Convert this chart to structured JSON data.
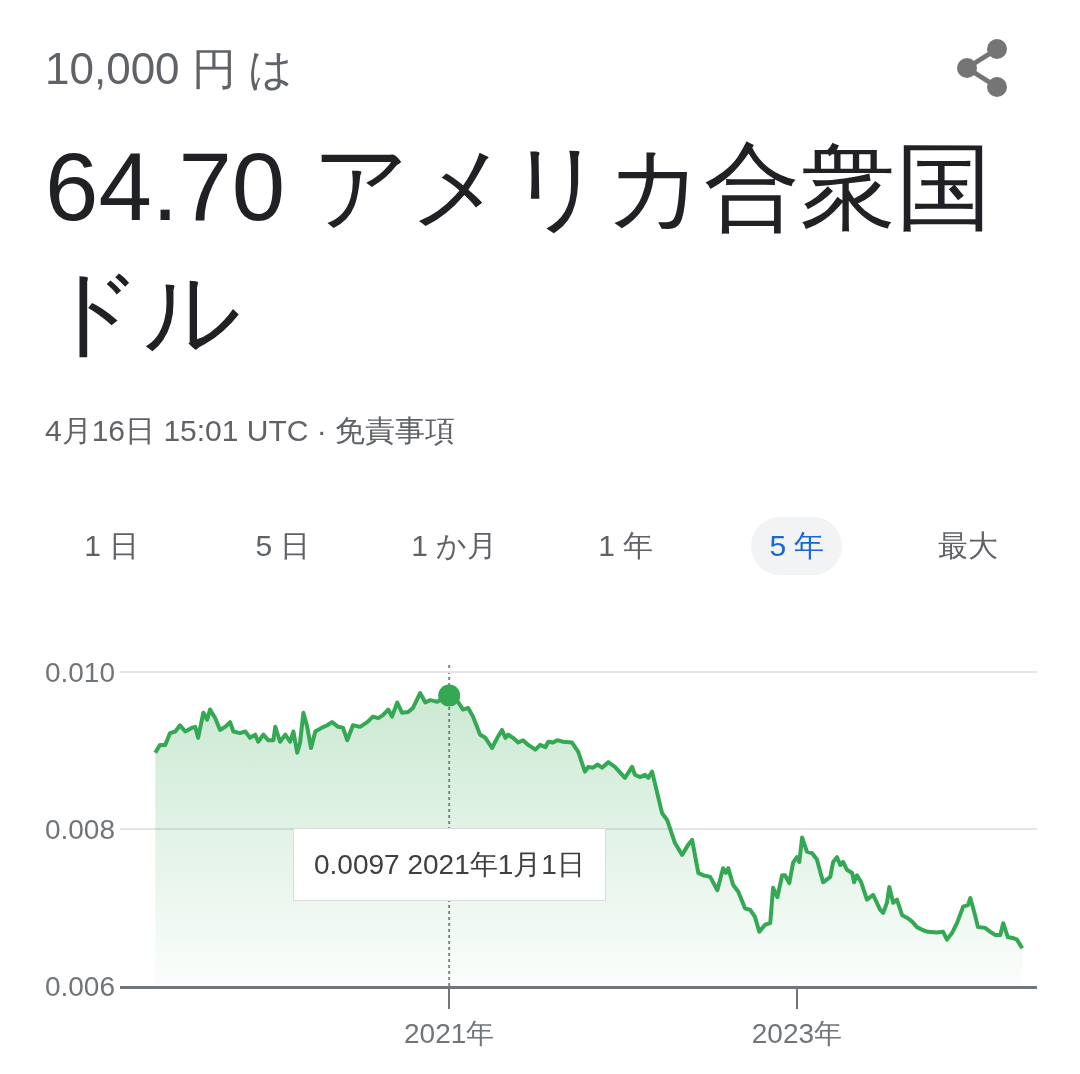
{
  "chart_data": {
    "type": "area",
    "subtitle": "10,000 円 は",
    "title": "64.70 アメリカ合衆国ドル",
    "annotations": [
      "4月16日 15:01 UTC · 免責事項",
      "1 日",
      "5 日",
      "1 か月",
      "1 年",
      "5 年",
      "最大"
    ],
    "series": [
      {
        "color": "#34a853",
        "x": [
          "2019-04-25",
          "2019-05-05",
          "2019-05-16",
          "2019-05-26",
          "2019-06-06",
          "2019-06-16",
          "2019-06-27",
          "2019-07-12",
          "2019-07-18",
          "2019-07-24",
          "2019-08-04",
          "2019-08-12",
          "2019-08-18",
          "2019-08-29",
          "2019-09-08",
          "2019-09-19",
          "2019-09-29",
          "2019-10-06",
          "2019-10-20",
          "2019-10-31",
          "2019-11-10",
          "2019-11-21",
          "2019-11-27",
          "2019-12-08",
          "2019-12-18",
          "2019-12-29",
          "2020-01-02",
          "2020-01-12",
          "2020-01-23",
          "2020-02-02",
          "2020-02-09",
          "2020-02-17",
          "2020-02-23",
          "2020-03-01",
          "2020-03-09",
          "2020-03-17",
          "2020-03-26",
          "2020-04-09",
          "2020-04-20",
          "2020-04-30",
          "2020-05-13",
          "2020-05-23",
          "2020-06-01",
          "2020-06-13",
          "2020-06-28",
          "2020-07-13",
          "2020-07-25",
          "2020-08-05",
          "2020-08-15",
          "2020-08-26",
          "2020-09-03",
          "2020-09-14",
          "2020-09-24",
          "2020-10-07",
          "2020-10-17",
          "2020-11-01",
          "2020-11-12",
          "2020-11-22",
          "2020-12-07",
          "2021-01-01",
          "2021-01-14",
          "2021-01-30",
          "2021-02-10",
          "2021-02-20",
          "2021-03-07",
          "2021-03-18",
          "2021-04-01",
          "2021-04-12",
          "2021-04-22",
          "2021-04-29",
          "2021-05-05",
          "2021-05-15",
          "2021-05-26",
          "2021-06-05",
          "2021-06-16",
          "2021-07-01",
          "2021-07-11",
          "2021-07-22",
          "2021-07-28",
          "2021-08-07",
          "2021-08-16",
          "2021-08-28",
          "2021-09-16",
          "2021-09-29",
          "2021-10-13",
          "2021-10-20",
          "2021-10-30",
          "2021-11-08",
          "2021-11-18",
          "2021-12-01",
          "2021-12-15",
          "2022-01-05",
          "2022-01-20",
          "2022-01-26",
          "2022-02-06",
          "2022-02-16",
          "2022-02-23",
          "2022-03-03",
          "2022-03-24",
          "2022-04-04",
          "2022-04-20",
          "2022-05-05",
          "2022-05-18",
          "2022-05-26",
          "2022-06-08",
          "2022-06-18",
          "2022-07-03",
          "2022-07-18",
          "2022-07-30",
          "2022-08-05",
          "2022-08-10",
          "2022-08-20",
          "2022-08-31",
          "2022-09-14",
          "2022-09-25",
          "2022-10-05",
          "2022-10-14",
          "2022-10-26",
          "2022-11-06",
          "2022-11-12",
          "2022-11-21",
          "2022-12-01",
          "2022-12-07",
          "2022-12-16",
          "2022-12-24",
          "2023-01-01",
          "2023-01-06",
          "2023-01-12",
          "2023-01-22",
          "2023-02-02",
          "2023-02-12",
          "2023-02-25",
          "2023-03-12",
          "2023-03-18",
          "2023-03-26",
          "2023-04-02",
          "2023-04-08",
          "2023-04-16",
          "2023-04-27",
          "2023-05-01",
          "2023-05-07",
          "2023-05-16",
          "2023-05-28",
          "2023-06-10",
          "2023-06-25",
          "2023-07-01",
          "2023-07-09",
          "2023-07-14",
          "2023-07-22",
          "2023-07-30",
          "2023-08-10",
          "2023-08-20",
          "2023-08-31",
          "2023-09-10",
          "2023-09-23",
          "2023-10-03",
          "2023-10-22",
          "2023-11-04",
          "2023-11-12",
          "2023-11-23",
          "2023-12-03",
          "2023-12-16",
          "2023-12-26",
          "2023-12-31",
          "2024-01-10",
          "2024-01-16",
          "2024-01-31",
          "2024-02-11",
          "2024-02-21",
          "2024-03-03",
          "2024-03-09",
          "2024-03-19",
          "2024-03-30",
          "2024-04-07",
          "2024-04-18"
        ],
        "values": [
          0.00897,
          0.00907,
          0.00907,
          0.00922,
          0.00924,
          0.00932,
          0.00924,
          0.00929,
          0.0093,
          0.00916,
          0.00948,
          0.00939,
          0.00952,
          0.00941,
          0.00926,
          0.0093,
          0.00936,
          0.00924,
          0.00922,
          0.00924,
          0.00916,
          0.0092,
          0.00911,
          0.0092,
          0.00913,
          0.00913,
          0.0093,
          0.00911,
          0.0092,
          0.00911,
          0.00924,
          0.00897,
          0.0091,
          0.00948,
          0.0093,
          0.00903,
          0.00924,
          0.00929,
          0.00932,
          0.00936,
          0.0093,
          0.00929,
          0.00913,
          0.00932,
          0.0093,
          0.00936,
          0.00943,
          0.00941,
          0.00945,
          0.00952,
          0.00943,
          0.00961,
          0.00948,
          0.00949,
          0.00954,
          0.00973,
          0.00961,
          0.00964,
          0.00962,
          0.0097,
          0.00967,
          0.00952,
          0.00954,
          0.00943,
          0.0092,
          0.00916,
          0.00903,
          0.00916,
          0.00926,
          0.00916,
          0.0092,
          0.00916,
          0.0091,
          0.00913,
          0.00907,
          0.00901,
          0.00907,
          0.00904,
          0.00911,
          0.0091,
          0.00913,
          0.00911,
          0.0091,
          0.00898,
          0.00873,
          0.00879,
          0.00878,
          0.00882,
          0.00878,
          0.00885,
          0.00879,
          0.00865,
          0.00879,
          0.00869,
          0.00866,
          0.00869,
          0.00865,
          0.00873,
          0.0082,
          0.00811,
          0.00782,
          0.00767,
          0.0078,
          0.00786,
          0.00744,
          0.00741,
          0.00739,
          0.00722,
          0.0075,
          0.00744,
          0.0075,
          0.00729,
          0.0072,
          0.00699,
          0.00697,
          0.00688,
          0.00669,
          0.00678,
          0.0068,
          0.00725,
          0.00713,
          0.00741,
          0.00741,
          0.00731,
          0.00757,
          0.00764,
          0.00758,
          0.00789,
          0.00771,
          0.00769,
          0.00761,
          0.00732,
          0.00739,
          0.00758,
          0.00764,
          0.00754,
          0.00758,
          0.00748,
          0.00744,
          0.00732,
          0.00741,
          0.00732,
          0.0071,
          0.00716,
          0.00697,
          0.00693,
          0.00706,
          0.00726,
          0.00706,
          0.0071,
          0.0069,
          0.00687,
          0.00682,
          0.00675,
          0.00671,
          0.00669,
          0.00668,
          0.00669,
          0.00659,
          0.00668,
          0.0068,
          0.00701,
          0.00703,
          0.00712,
          0.0069,
          0.00675,
          0.00674,
          0.00669,
          0.00665,
          0.00665,
          0.0068,
          0.00662,
          0.00661,
          0.00659,
          0.00648
        ]
      },
      {
        "type": "scatter",
        "color": "#34a853",
        "x": [
          "2021-01-01"
        ],
        "values": [
          0.0097
        ]
      }
    ],
    "xlim": [
      "2019-02-10",
      "2024-05-19"
    ],
    "ylim": [
      0.006,
      0.0101
    ],
    "xticks": [
      {
        "value": "2021-01-01",
        "label": "2021年"
      },
      {
        "value": "2023-01-01",
        "label": "2023年"
      }
    ],
    "yticks": [
      0.006,
      0.008,
      {
        "value": 0.01,
        "label": "0.010"
      }
    ],
    "grid": "y",
    "ref_lines": [
      {
        "axis": "x",
        "value": "2021-01-01",
        "label": "0.0097 2021年1月1日",
        "line_style": "dotted",
        "color": "#80868b"
      }
    ]
  }
}
